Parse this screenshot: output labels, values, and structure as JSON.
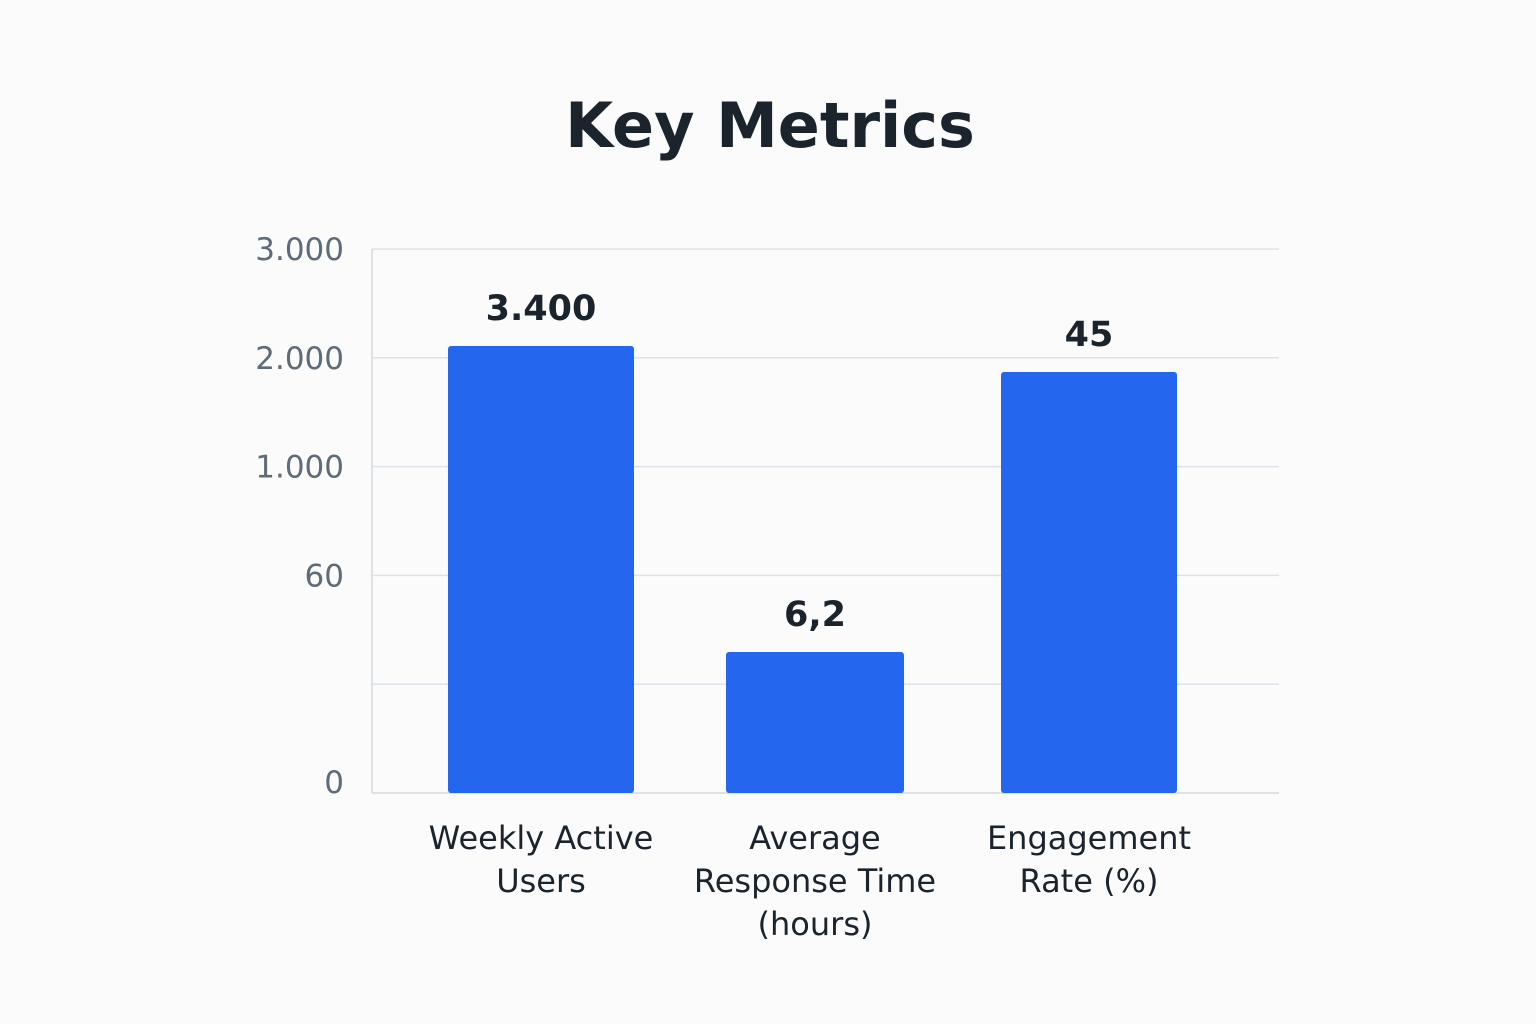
{
  "chart_data": {
    "type": "bar",
    "title": "Key Metrics",
    "xlabel": "",
    "ylabel": "",
    "categories": [
      "Weekly Active Users",
      "Average Response Time (hours)",
      "Engagement Rate (%)"
    ],
    "category_label_lines": [
      [
        "Weekly Active",
        "Users"
      ],
      [
        "Average",
        "Response Time",
        "(hours)"
      ],
      [
        "Engagement",
        "Rate (%)"
      ]
    ],
    "values": [
      3400,
      6.2,
      45
    ],
    "value_labels": [
      "3.400",
      "6,2",
      "45"
    ],
    "y_tick_labels": [
      "0",
      "",
      "60",
      "1.000",
      "2.000",
      "3.000"
    ],
    "grid": true,
    "legend": "none",
    "bar_color": "#2466ee"
  }
}
